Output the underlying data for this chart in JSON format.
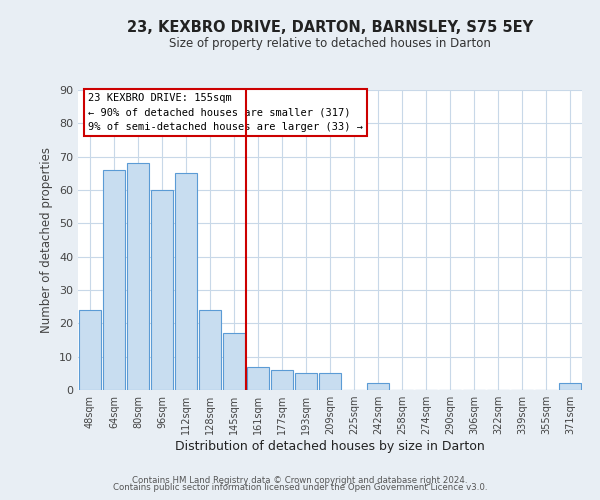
{
  "title": "23, KEXBRO DRIVE, DARTON, BARNSLEY, S75 5EY",
  "subtitle": "Size of property relative to detached houses in Darton",
  "xlabel": "Distribution of detached houses by size in Darton",
  "ylabel": "Number of detached properties",
  "bar_color": "#c8ddf0",
  "bar_edge_color": "#5b9bd5",
  "categories": [
    "48sqm",
    "64sqm",
    "80sqm",
    "96sqm",
    "112sqm",
    "128sqm",
    "145sqm",
    "161sqm",
    "177sqm",
    "193sqm",
    "209sqm",
    "225sqm",
    "242sqm",
    "258sqm",
    "274sqm",
    "290sqm",
    "306sqm",
    "322sqm",
    "339sqm",
    "355sqm",
    "371sqm"
  ],
  "values": [
    24,
    66,
    68,
    60,
    65,
    24,
    17,
    7,
    6,
    5,
    5,
    0,
    2,
    0,
    0,
    0,
    0,
    0,
    0,
    0,
    2
  ],
  "vline_x": 6.5,
  "vline_color": "#cc0000",
  "ylim": [
    0,
    90
  ],
  "yticks": [
    0,
    10,
    20,
    30,
    40,
    50,
    60,
    70,
    80,
    90
  ],
  "annotation_title": "23 KEXBRO DRIVE: 155sqm",
  "annotation_line1": "← 90% of detached houses are smaller (317)",
  "annotation_line2": "9% of semi-detached houses are larger (33) →",
  "annotation_box_color": "#ffffff",
  "annotation_box_edge": "#cc0000",
  "footer1": "Contains HM Land Registry data © Crown copyright and database right 2024.",
  "footer2": "Contains public sector information licensed under the Open Government Licence v3.0.",
  "background_color": "#e8eef4",
  "plot_bg_color": "#ffffff",
  "grid_color": "#c8d8e8"
}
